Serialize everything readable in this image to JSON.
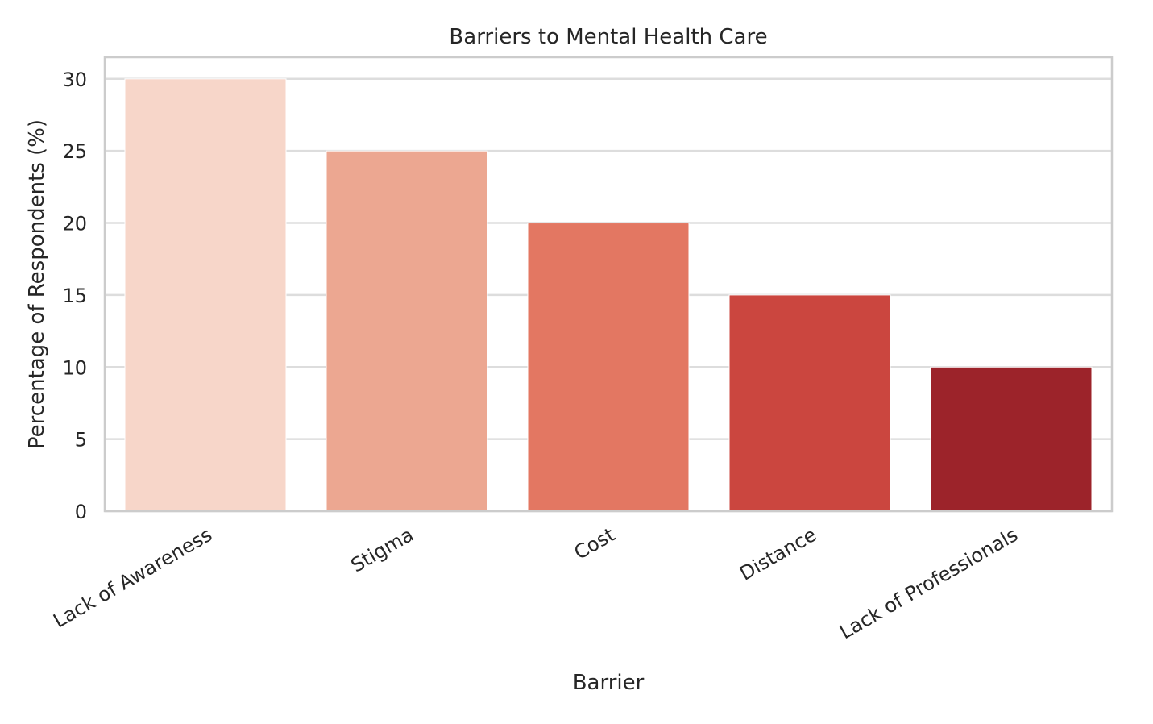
{
  "chart_data": {
    "type": "bar",
    "title": "Barriers to Mental Health Care",
    "xlabel": "Barrier",
    "ylabel": "Percentage of Respondents (%)",
    "categories": [
      "Lack of Awareness",
      "Stigma",
      "Cost",
      "Distance",
      "Lack of Professionals"
    ],
    "values": [
      30,
      25,
      20,
      15,
      10
    ],
    "colors": [
      "#f7d6c9",
      "#eca791",
      "#e37762",
      "#cb463f",
      "#9c232a"
    ],
    "ylim": [
      0,
      31.5
    ],
    "yticks": [
      0,
      5,
      10,
      15,
      20,
      25,
      30
    ],
    "grid": "horizontal",
    "legend": "none",
    "xtick_rotation": 30
  }
}
